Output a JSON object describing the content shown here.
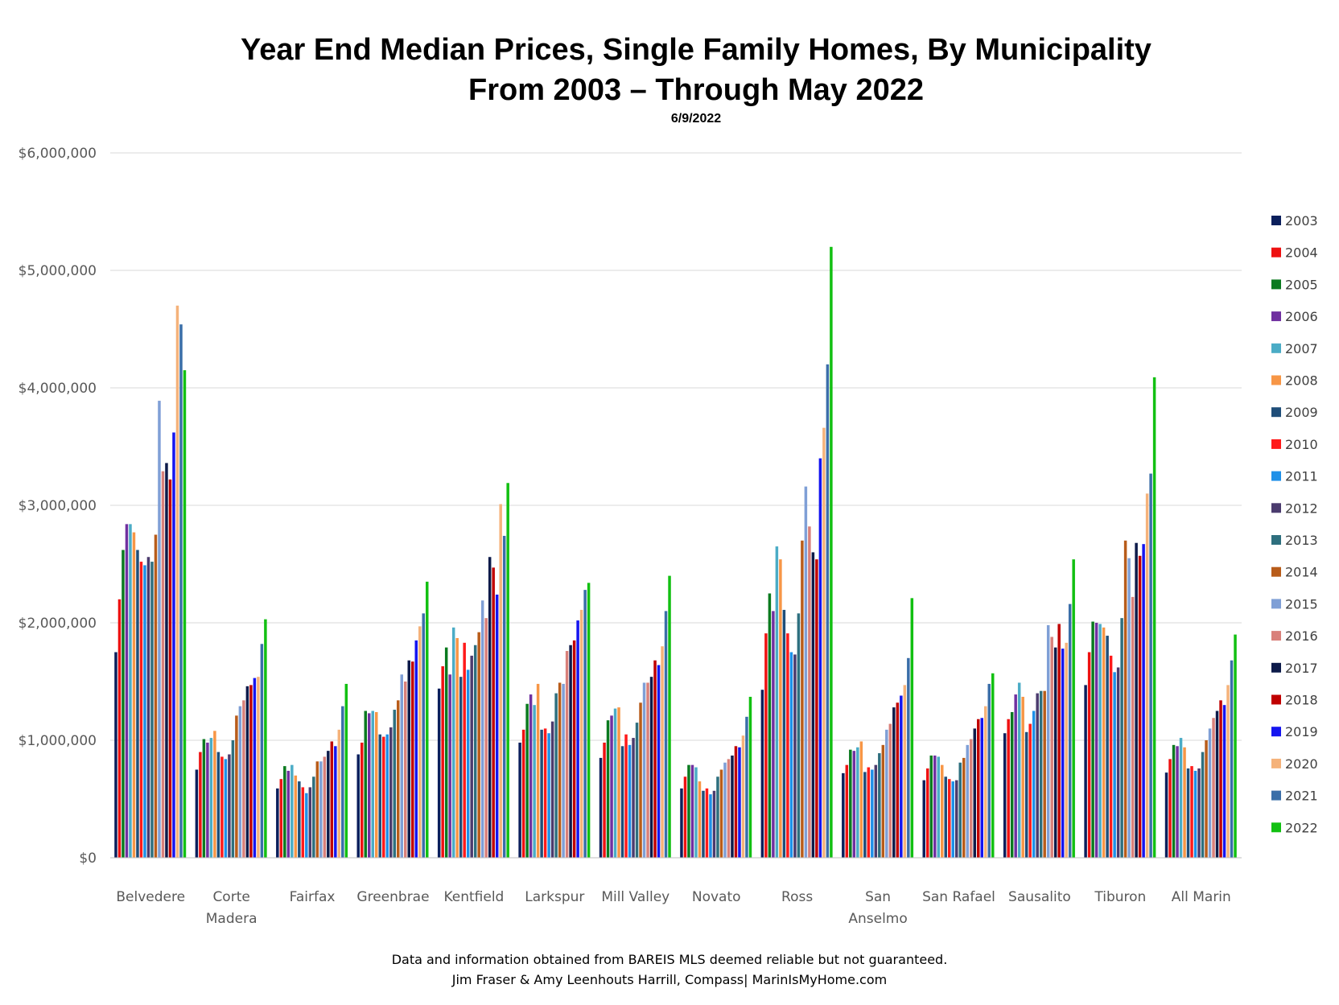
{
  "header": {
    "title_line1": "Year End Median Prices, Single Family Homes, By Municipality",
    "title_line2": "From 2003 – Through May 2022",
    "date": "6/9/2022"
  },
  "footer": {
    "line1": "Data and information obtained from BAREIS MLS deemed reliable but not guaranteed.",
    "line2": "Jim Fraser & Amy Leenhouts Harrill, Compass| MarinIsMyHome.com"
  },
  "chart_data": {
    "type": "bar",
    "title": "Year End Median Prices, Single Family Homes, By Municipality",
    "subtitle": "From 2003 – Through May 2022",
    "xlabel": "",
    "ylabel": "",
    "ylim": [
      0,
      6000000
    ],
    "y_ticks": [
      0,
      1000000,
      2000000,
      3000000,
      4000000,
      5000000,
      6000000
    ],
    "y_tick_labels": [
      "$0",
      "$1,000,000",
      "$2,000,000",
      "$3,000,000",
      "$4,000,000",
      "$5,000,000",
      "$6,000,000"
    ],
    "grid": true,
    "legend_position": "right",
    "categories": [
      "Belvedere",
      "Corte Madera",
      "Fairfax",
      "Greenbrae",
      "Kentfield",
      "Larkspur",
      "Mill Valley",
      "Novato",
      "Ross",
      "San Anselmo",
      "San Rafael",
      "Sausalito",
      "Tiburon",
      "All Marin"
    ],
    "category_label_lines": [
      [
        "Belvedere"
      ],
      [
        "Corte",
        "Madera"
      ],
      [
        "Fairfax"
      ],
      [
        "Greenbrae"
      ],
      [
        "Kentfield"
      ],
      [
        "Larkspur"
      ],
      [
        "Mill Valley"
      ],
      [
        "Novato"
      ],
      [
        "Ross"
      ],
      [
        "San",
        "Anselmo"
      ],
      [
        "San Rafael"
      ],
      [
        "Sausalito"
      ],
      [
        "Tiburon"
      ],
      [
        "All Marin"
      ]
    ],
    "series": [
      {
        "name": "2003",
        "color": "#0b1f5c",
        "values": [
          1750000,
          750000,
          590000,
          880000,
          1440000,
          980000,
          850000,
          590000,
          1430000,
          720000,
          660000,
          1060000,
          1470000,
          725000
        ]
      },
      {
        "name": "2004",
        "color": "#ee1111",
        "values": [
          2200000,
          900000,
          670000,
          980000,
          1630000,
          1090000,
          980000,
          690000,
          1910000,
          790000,
          760000,
          1180000,
          1750000,
          840000
        ]
      },
      {
        "name": "2005",
        "color": "#0a7a1f",
        "values": [
          2620000,
          1010000,
          780000,
          1250000,
          1790000,
          1310000,
          1170000,
          790000,
          2250000,
          920000,
          870000,
          1240000,
          2010000,
          960000
        ]
      },
      {
        "name": "2006",
        "color": "#7030a0",
        "values": [
          2840000,
          980000,
          740000,
          1230000,
          1560000,
          1390000,
          1210000,
          790000,
          2100000,
          910000,
          870000,
          1390000,
          2000000,
          950000
        ]
      },
      {
        "name": "2007",
        "color": "#4bacc6",
        "values": [
          2840000,
          1020000,
          790000,
          1250000,
          1960000,
          1300000,
          1270000,
          770000,
          2650000,
          940000,
          860000,
          1490000,
          1990000,
          1020000
        ]
      },
      {
        "name": "2008",
        "color": "#f79646",
        "values": [
          2770000,
          1080000,
          700000,
          1240000,
          1870000,
          1480000,
          1280000,
          650000,
          2540000,
          990000,
          790000,
          1370000,
          1960000,
          940000
        ]
      },
      {
        "name": "2009",
        "color": "#1f4e79",
        "values": [
          2620000,
          900000,
          650000,
          1050000,
          1540000,
          1090000,
          950000,
          570000,
          2110000,
          730000,
          690000,
          1070000,
          1890000,
          760000
        ]
      },
      {
        "name": "2010",
        "color": "#ff1a1a",
        "values": [
          2520000,
          860000,
          600000,
          1030000,
          1830000,
          1100000,
          1050000,
          590000,
          1910000,
          770000,
          670000,
          1140000,
          1720000,
          780000
        ]
      },
      {
        "name": "2011",
        "color": "#1e90e8",
        "values": [
          2490000,
          840000,
          550000,
          1050000,
          1600000,
          1060000,
          960000,
          540000,
          1750000,
          750000,
          650000,
          1250000,
          1580000,
          740000
        ]
      },
      {
        "name": "2012",
        "color": "#4b3b6e",
        "values": [
          2560000,
          880000,
          600000,
          1110000,
          1720000,
          1160000,
          1020000,
          570000,
          1730000,
          790000,
          660000,
          1400000,
          1620000,
          760000
        ]
      },
      {
        "name": "2013",
        "color": "#2e6f7e",
        "values": [
          2520000,
          1000000,
          690000,
          1260000,
          1810000,
          1400000,
          1150000,
          690000,
          2080000,
          890000,
          810000,
          1420000,
          2040000,
          900000
        ]
      },
      {
        "name": "2014",
        "color": "#b85c1a",
        "values": [
          2750000,
          1210000,
          820000,
          1340000,
          1920000,
          1490000,
          1320000,
          750000,
          2700000,
          960000,
          850000,
          1420000,
          2700000,
          1000000
        ]
      },
      {
        "name": "2015",
        "color": "#7f9fd6",
        "values": [
          3890000,
          1290000,
          820000,
          1560000,
          2190000,
          1480000,
          1490000,
          810000,
          3160000,
          1090000,
          960000,
          1980000,
          2550000,
          1100000
        ]
      },
      {
        "name": "2016",
        "color": "#d9807a",
        "values": [
          3290000,
          1340000,
          860000,
          1500000,
          2040000,
          1760000,
          1490000,
          840000,
          2820000,
          1140000,
          1010000,
          1880000,
          2220000,
          1190000
        ]
      },
      {
        "name": "2017",
        "color": "#0d1b4a",
        "values": [
          3360000,
          1460000,
          910000,
          1680000,
          2560000,
          1810000,
          1540000,
          870000,
          2600000,
          1280000,
          1100000,
          1790000,
          2680000,
          1250000
        ]
      },
      {
        "name": "2018",
        "color": "#c00000",
        "values": [
          3220000,
          1470000,
          990000,
          1670000,
          2470000,
          1850000,
          1680000,
          950000,
          2540000,
          1320000,
          1180000,
          1990000,
          2570000,
          1340000
        ]
      },
      {
        "name": "2019",
        "color": "#1515f0",
        "values": [
          3620000,
          1530000,
          950000,
          1850000,
          2240000,
          2020000,
          1640000,
          940000,
          3400000,
          1380000,
          1190000,
          1780000,
          2670000,
          1300000
        ]
      },
      {
        "name": "2020",
        "color": "#f5b27a",
        "values": [
          4700000,
          1540000,
          1090000,
          1970000,
          3010000,
          2110000,
          1800000,
          1040000,
          3660000,
          1470000,
          1290000,
          1830000,
          3100000,
          1470000
        ]
      },
      {
        "name": "2021",
        "color": "#3a6ea8",
        "values": [
          4540000,
          1820000,
          1290000,
          2080000,
          2740000,
          2280000,
          2100000,
          1200000,
          4200000,
          1700000,
          1480000,
          2160000,
          3270000,
          1680000
        ]
      },
      {
        "name": "2022",
        "color": "#12c012",
        "values": [
          4150000,
          2030000,
          1480000,
          2350000,
          3190000,
          2340000,
          2400000,
          1370000,
          5200000,
          2210000,
          1570000,
          2540000,
          4090000,
          1900000
        ]
      }
    ]
  }
}
